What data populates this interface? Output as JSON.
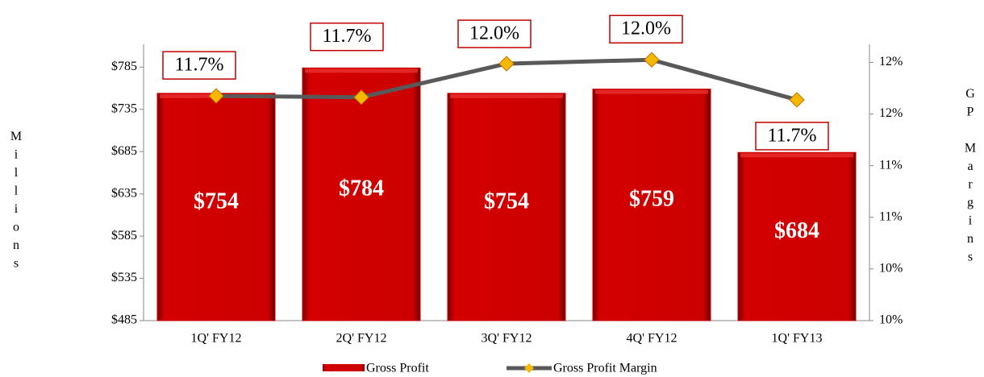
{
  "chart_data": {
    "type": "bar-line",
    "categories": [
      "1Q' FY12",
      "2Q' FY12",
      "3Q' FY12",
      "4Q' FY12",
      "1Q' FY13"
    ],
    "ylabel": "Millions",
    "y2label": "GP Margins",
    "ylim": [
      485,
      812
    ],
    "yticks": [
      {
        "value": 485,
        "label": "$485"
      },
      {
        "value": 535,
        "label": "$535"
      },
      {
        "value": 585,
        "label": "$585"
      },
      {
        "value": 635,
        "label": "$635"
      },
      {
        "value": 685,
        "label": "$685"
      },
      {
        "value": 735,
        "label": "$735"
      },
      {
        "value": 785,
        "label": "$785"
      }
    ],
    "y2lim": [
      10,
      12.14
    ],
    "y2ticks": [
      {
        "value": 10,
        "label": "10%"
      },
      {
        "value": 10.4,
        "label": "10%"
      },
      {
        "value": 10.8,
        "label": "11%"
      },
      {
        "value": 11.2,
        "label": "11%"
      },
      {
        "value": 11.6,
        "label": "12%"
      },
      {
        "value": 12,
        "label": "12%"
      }
    ],
    "series": [
      {
        "name": "Gross Profit",
        "type": "bar",
        "color": "#cc0000",
        "values": [
          754,
          784,
          754,
          759,
          684
        ],
        "value_labels": [
          "$754",
          "$784",
          "$754",
          "$759",
          "$684"
        ]
      },
      {
        "name": "Gross Profit Margin",
        "type": "line",
        "axis": "y2",
        "color": "#595959",
        "marker_color": "#f5b800",
        "values": [
          11.74,
          11.73,
          11.99,
          12.02,
          11.71
        ],
        "value_labels": [
          "11.7%",
          "11.7%",
          "12.0%",
          "12.0%",
          "11.7%"
        ]
      }
    ],
    "legend": "bottom"
  }
}
